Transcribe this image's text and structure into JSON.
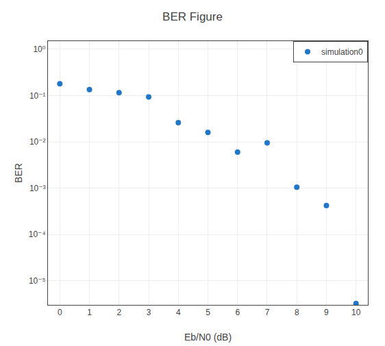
{
  "chart_data": {
    "type": "scatter",
    "title": "BER Figure",
    "x_label": "Eb/N0 (dB)",
    "y_label": "BER",
    "log": "y",
    "grid": true,
    "legend": "upper right",
    "marker": "o",
    "series": [
      {
        "name": "simulation0",
        "color": "#2176C7",
        "x": [
          0,
          1,
          2,
          3,
          4,
          5,
          6,
          7,
          8,
          9,
          10
        ],
        "values": [
          0.18,
          0.135,
          0.115,
          0.093,
          0.026,
          0.016,
          0.006,
          0.0095,
          0.00105,
          0.00042,
          3.2e-06
        ]
      }
    ],
    "xlim": [
      -0.4,
      10.4
    ],
    "xticks": [
      0,
      1,
      2,
      3,
      4,
      5,
      6,
      7,
      8,
      9,
      10
    ],
    "ylim": [
      3e-06,
      1.5
    ],
    "yticks": [
      {
        "value": 1e-05,
        "label": "10⁻⁵"
      },
      {
        "value": 0.0001,
        "label": "10⁻⁴"
      },
      {
        "value": 0.001,
        "label": "10⁻³"
      },
      {
        "value": 0.01,
        "label": "10⁻²"
      },
      {
        "value": 0.1,
        "label": "10⁻¹"
      },
      {
        "value": 1,
        "label": "10⁰"
      }
    ]
  }
}
